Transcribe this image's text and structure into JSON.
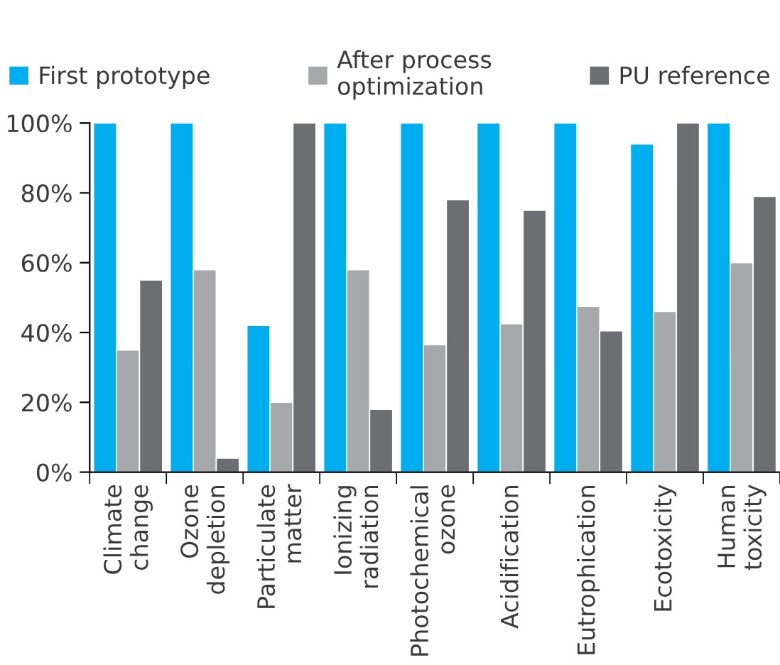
{
  "chart_data": {
    "type": "bar",
    "categories": [
      "Climate\nchange",
      "Ozone\ndepletion",
      "Particulate\nmatter",
      "Ionizing\nradiation",
      "Photochemical\nozone",
      "Acidification",
      "Eutrophication",
      "Ecotoxicity",
      "Human\ntoxicity"
    ],
    "series": [
      {
        "name": "First prototype",
        "color": "#00aeef",
        "values": [
          100,
          100,
          42,
          100,
          100,
          100,
          100,
          94,
          100
        ]
      },
      {
        "name": "After process\noptimization",
        "color": "#a7a8ab",
        "values": [
          35,
          58,
          20,
          58,
          36.5,
          42.5,
          47.5,
          46,
          60
        ]
      },
      {
        "name": "PU reference",
        "color": "#6d6e71",
        "values": [
          55,
          4,
          100,
          18,
          78,
          75,
          40.5,
          100,
          79
        ]
      }
    ],
    "ylim": [
      0,
      100
    ],
    "yticks": [
      {
        "value": 0,
        "label": "0%"
      },
      {
        "value": 20,
        "label": "20%"
      },
      {
        "value": 40,
        "label": "40%"
      },
      {
        "value": 60,
        "label": "60%"
      },
      {
        "value": 80,
        "label": "80%"
      },
      {
        "value": 100,
        "label": "100%"
      }
    ],
    "legend": "top",
    "grid": false
  }
}
